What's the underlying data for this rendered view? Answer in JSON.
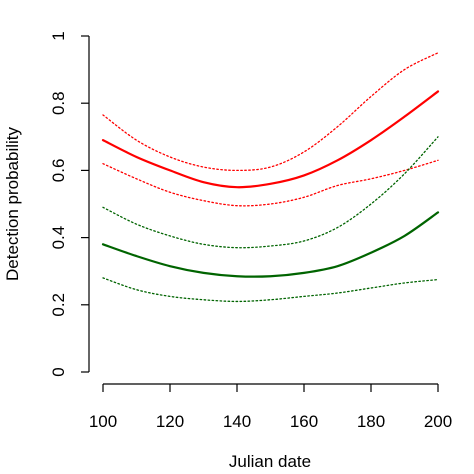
{
  "chart_data": {
    "type": "line",
    "xlabel": "Julian date",
    "ylabel": "Detection probability",
    "xlim": [
      100,
      200
    ],
    "ylim": [
      0,
      1
    ],
    "x_ticks": [
      "100",
      "120",
      "140",
      "160",
      "180",
      "200"
    ],
    "y_ticks": [
      "0",
      "0.2",
      "0.4",
      "0.6",
      "0.8",
      "1"
    ],
    "grid": false,
    "legend": "none",
    "x": [
      100,
      110,
      120,
      130,
      140,
      150,
      160,
      170,
      180,
      190,
      200
    ],
    "series": [
      {
        "color": "#ff0000",
        "line_style": "solid",
        "values": [
          0.69,
          0.64,
          0.6,
          0.565,
          0.55,
          0.56,
          0.585,
          0.63,
          0.69,
          0.76,
          0.835
        ]
      },
      {
        "color": "#ff0000",
        "line_style": "dotted",
        "values": [
          0.765,
          0.69,
          0.64,
          0.61,
          0.6,
          0.61,
          0.655,
          0.73,
          0.82,
          0.9,
          0.95
        ]
      },
      {
        "color": "#ff0000",
        "line_style": "dotted",
        "values": [
          0.62,
          0.575,
          0.535,
          0.51,
          0.495,
          0.5,
          0.52,
          0.555,
          0.575,
          0.6,
          0.63
        ]
      },
      {
        "color": "#006400",
        "line_style": "solid",
        "values": [
          0.38,
          0.345,
          0.315,
          0.295,
          0.285,
          0.285,
          0.295,
          0.315,
          0.355,
          0.405,
          0.475
        ]
      },
      {
        "color": "#006400",
        "line_style": "dotted",
        "values": [
          0.49,
          0.44,
          0.405,
          0.38,
          0.37,
          0.375,
          0.39,
          0.43,
          0.5,
          0.59,
          0.7
        ]
      },
      {
        "color": "#006400",
        "line_style": "dotted",
        "values": [
          0.28,
          0.245,
          0.225,
          0.215,
          0.21,
          0.215,
          0.225,
          0.235,
          0.25,
          0.265,
          0.275
        ]
      }
    ]
  }
}
